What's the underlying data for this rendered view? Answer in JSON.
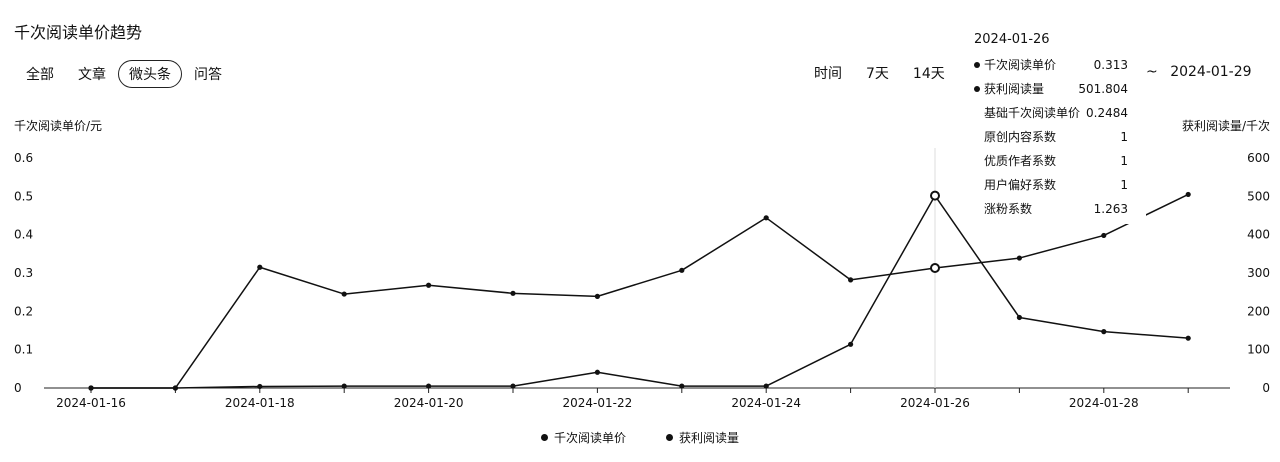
{
  "title": "千次阅读单价趋势",
  "tabs": [
    {
      "label": "全部",
      "active": false
    },
    {
      "label": "文章",
      "active": false
    },
    {
      "label": "微头条",
      "active": true
    },
    {
      "label": "问答",
      "active": false
    }
  ],
  "time_filter": {
    "label": "时间",
    "options": [
      "7天",
      "14天"
    ],
    "range_separator": "~",
    "range_end": "2024-01-29"
  },
  "tooltip": {
    "date": "2024-01-26",
    "rows": [
      {
        "name": "千次阅读单价",
        "value": "0.313",
        "dot": true
      },
      {
        "name": "获利阅读量",
        "value": "501.804",
        "dot": true
      },
      {
        "name": "基础千次阅读单价",
        "value": "0.2484",
        "dot": false
      },
      {
        "name": "原创内容系数",
        "value": "1",
        "dot": false
      },
      {
        "name": "优质作者系数",
        "value": "1",
        "dot": false
      },
      {
        "name": "用户偏好系数",
        "value": "1",
        "dot": false
      },
      {
        "name": "涨粉系数",
        "value": "1.263",
        "dot": false
      }
    ]
  },
  "chart_data": {
    "type": "line",
    "x": [
      "2024-01-16",
      "2024-01-17",
      "2024-01-18",
      "2024-01-19",
      "2024-01-20",
      "2024-01-21",
      "2024-01-22",
      "2024-01-23",
      "2024-01-24",
      "2024-01-25",
      "2024-01-26",
      "2024-01-27",
      "2024-01-28",
      "2024-01-29"
    ],
    "x_tick_labels": [
      "2024-01-16",
      "2024-01-18",
      "2024-01-20",
      "2024-01-22",
      "2024-01-24",
      "2024-01-26",
      "2024-01-28"
    ],
    "y_left_label": "千次阅读单价/元",
    "y_right_label": "获利阅读量/千次",
    "y_left_ticks": [
      "0",
      "0.1",
      "0.2",
      "0.3",
      "0.4",
      "0.5",
      "0.6"
    ],
    "y_right_ticks": [
      "0",
      "100",
      "200",
      "300",
      "400",
      "500",
      "600"
    ],
    "ylim_left": [
      0,
      0.6
    ],
    "ylim_right": [
      0,
      600
    ],
    "grid": false,
    "legend_position": "bottom",
    "highlight_index": 10,
    "series": [
      {
        "name": "千次阅读单价",
        "axis": "left",
        "values": [
          0,
          0,
          0.315,
          0.245,
          0.268,
          0.247,
          0.239,
          0.307,
          0.444,
          0.282,
          0.313,
          0.339,
          0.398,
          0.505
        ]
      },
      {
        "name": "获利阅读量",
        "axis": "right",
        "values": [
          0,
          0,
          4,
          5,
          5,
          5,
          41,
          5,
          5,
          114,
          501.804,
          184,
          147,
          130
        ]
      }
    ]
  }
}
